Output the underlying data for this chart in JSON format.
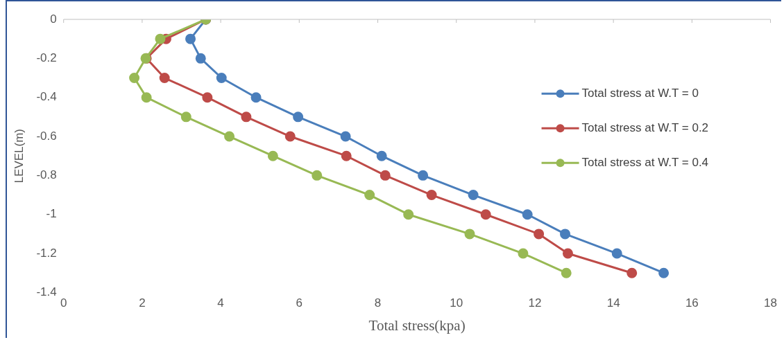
{
  "chart_data": {
    "type": "line",
    "xlabel": "Total stress(kpa)",
    "ylabel": "LEVEL(m)",
    "xlim": [
      0,
      18
    ],
    "xticks": [
      0,
      2,
      4,
      6,
      8,
      10,
      12,
      14,
      16,
      18
    ],
    "ylim": [
      -1.4,
      0
    ],
    "yticks": [
      {
        "value": 0,
        "label": "0"
      },
      {
        "value": -0.2,
        "label": "-0.2"
      },
      {
        "value": -0.4,
        "label": "-0.4"
      },
      {
        "value": -0.6,
        "label": "-0.6"
      },
      {
        "value": -0.8,
        "label": "-0.8"
      },
      {
        "value": -1,
        "label": "-1"
      },
      {
        "value": -1.2,
        "label": "-1.2"
      },
      {
        "value": -1.4,
        "label": "-1.4"
      }
    ],
    "grid": false,
    "legend": "right",
    "marker": "circle",
    "line_style": "solid",
    "series": [
      {
        "name": "Total stress at W.T = 0",
        "color": "#4a7ebb",
        "x": [
          3.62,
          3.23,
          3.49,
          4.02,
          4.9,
          5.97,
          7.18,
          8.1,
          9.15,
          10.43,
          11.81,
          12.77,
          14.09,
          15.28
        ],
        "values": [
          0,
          -0.1,
          -0.2,
          -0.3,
          -0.4,
          -0.5,
          -0.6,
          -0.7,
          -0.8,
          -0.9,
          -1,
          -1.1,
          -1.2,
          -1.3
        ]
      },
      {
        "name": "Total stress at W.T = 0.2",
        "color": "#be4b48",
        "x": [
          3.62,
          2.61,
          2.11,
          2.57,
          3.66,
          4.65,
          5.77,
          7.2,
          8.19,
          9.37,
          10.75,
          12.1,
          12.84,
          14.47
        ],
        "values": [
          0,
          -0.1,
          -0.2,
          -0.3,
          -0.4,
          -0.5,
          -0.6,
          -0.7,
          -0.8,
          -0.9,
          -1,
          -1.1,
          -1.2,
          -1.3
        ]
      },
      {
        "name": "Total stress at W.T = 0.4",
        "color": "#98b954",
        "x": [
          3.62,
          2.46,
          2.09,
          1.8,
          2.11,
          3.12,
          4.22,
          5.33,
          6.45,
          7.79,
          8.78,
          10.34,
          11.7,
          12.8
        ],
        "values": [
          0,
          -0.1,
          -0.2,
          -0.3,
          -0.4,
          -0.5,
          -0.6,
          -0.7,
          -0.8,
          -0.9,
          -1,
          -1.1,
          -1.2,
          -1.3
        ]
      }
    ]
  }
}
